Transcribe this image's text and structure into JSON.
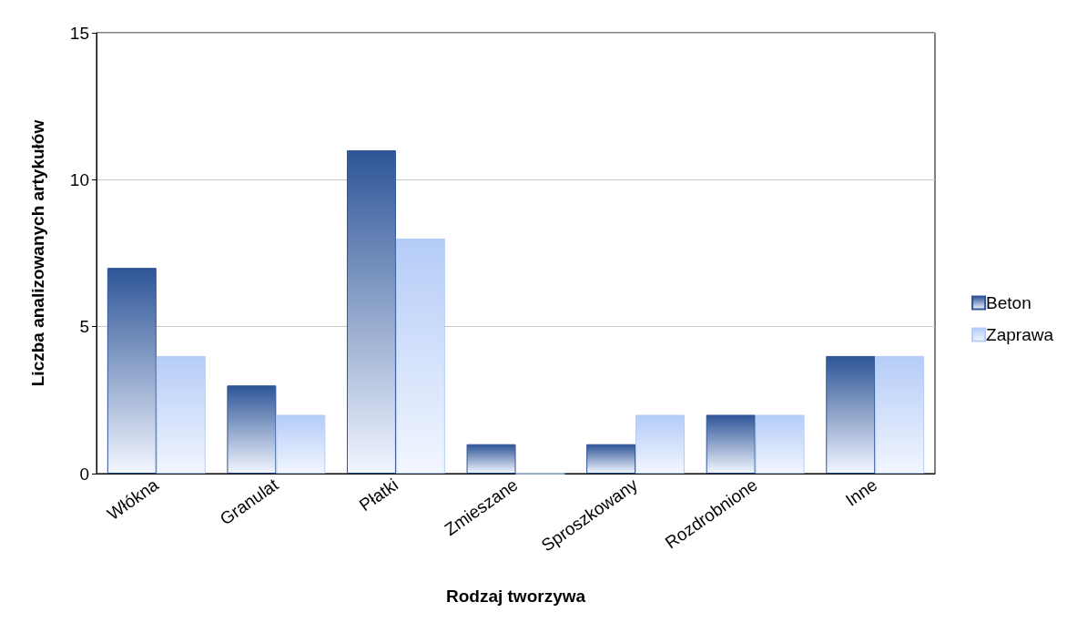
{
  "chart_data": {
    "type": "bar",
    "xlabel": "Rodzaj tworzywa",
    "ylabel": "Liczba analizowanych artykułów",
    "categories": [
      "Włókna",
      "Granulat",
      "Płatki",
      "Zmieszane",
      "Sproszkowany",
      "Rozdrobnione",
      "Inne"
    ],
    "series": [
      {
        "name": "Beton",
        "color": "#2e5597",
        "values": [
          7,
          3,
          11,
          1,
          1,
          2,
          4
        ]
      },
      {
        "name": "Zaprawa",
        "color": "#b4ccf7",
        "values": [
          4,
          2,
          8,
          0,
          2,
          2,
          4
        ]
      }
    ],
    "ylim": [
      0,
      15
    ],
    "yticks": [
      0,
      5,
      10,
      15
    ],
    "grid": "y",
    "legend": "right"
  }
}
